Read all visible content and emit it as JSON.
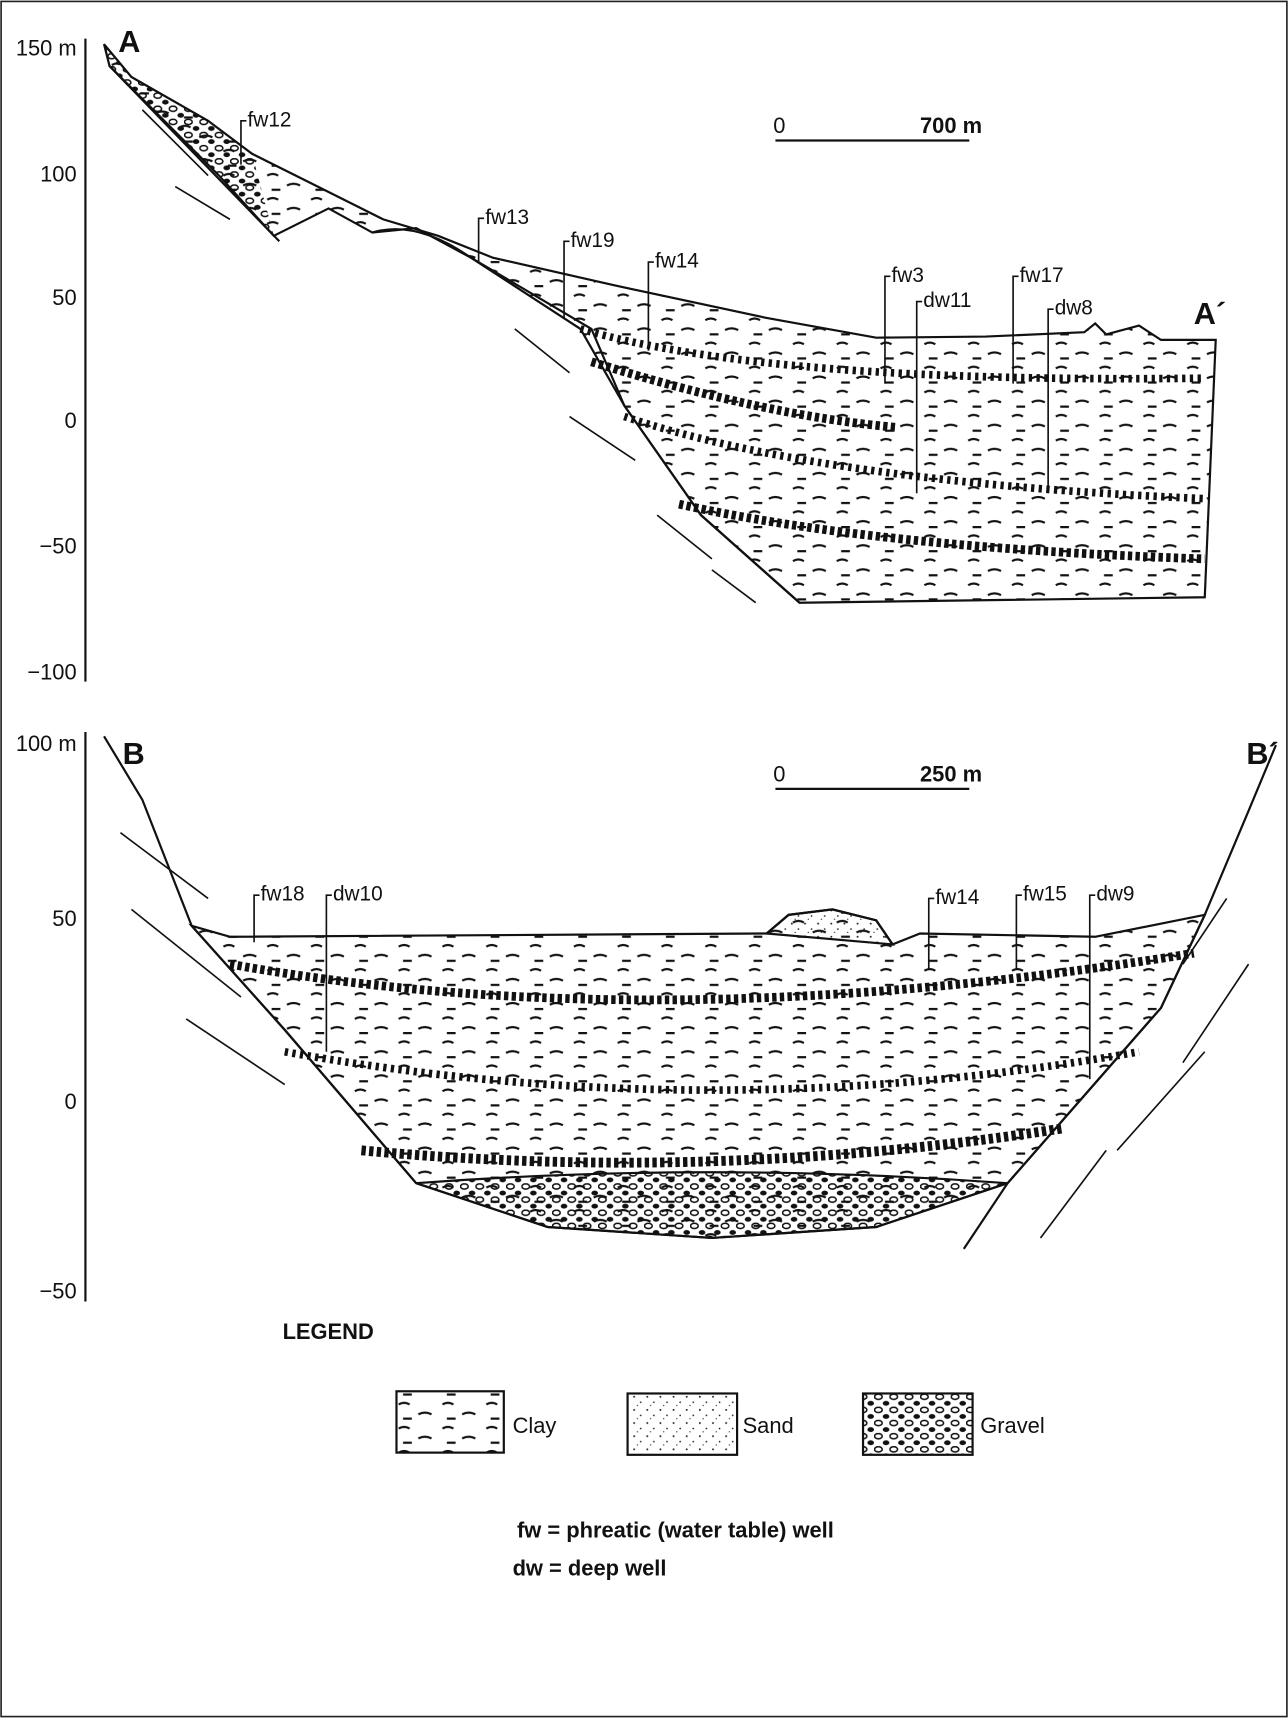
{
  "sections": [
    {
      "start": "A",
      "end": "A´",
      "axis": [
        "150 m",
        "100",
        "50",
        "0",
        "−50",
        "−100"
      ],
      "scale": {
        "zero": "0",
        "length": "700 m"
      },
      "wells": [
        "fw12",
        "fw13",
        "fw19",
        "fw14",
        "fw3",
        "dw11",
        "fw17",
        "dw8"
      ]
    },
    {
      "start": "B",
      "end": "B´",
      "axis": [
        "100 m",
        "50",
        "0",
        "−50"
      ],
      "scale": {
        "zero": "0",
        "length": "250 m"
      },
      "wells": [
        "fw18",
        "dw10",
        "fw14",
        "fw15",
        "dw9"
      ]
    }
  ],
  "legend": {
    "title": "LEGEND",
    "items": [
      "Clay",
      "Sand",
      "Gravel"
    ],
    "notes": [
      "fw = phreatic (water table) well",
      "dw = deep well"
    ]
  }
}
